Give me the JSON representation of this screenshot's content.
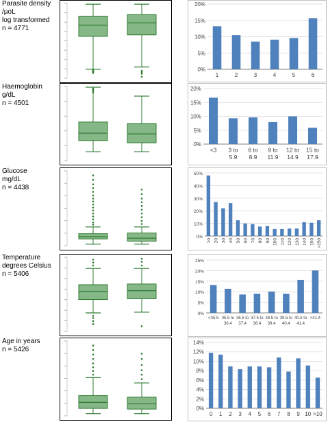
{
  "figure": {
    "panels": [
      {
        "label": [
          "Parasite density",
          "/µoL",
          "log transformed",
          "n = 4771"
        ],
        "box_tick_count": 9,
        "box_plot": {
          "groups": [
            {
              "wl": 0.12,
              "q1": 0.56,
              "med": 0.71,
              "q3": 0.83,
              "wh": 0.99,
              "outliers": [
                0.07,
                0.08,
                0.09,
                0.1,
                0.11
              ]
            },
            {
              "wl": 0.15,
              "q1": 0.58,
              "med": 0.74,
              "q3": 0.85,
              "wh": 0.99,
              "outliers": [
                0.02,
                0.06,
                0.08,
                0.1
              ]
            }
          ]
        }
      },
      {
        "label": [
          "Haemoglobin",
          "g/dL",
          "n = 4501"
        ],
        "box_tick_count": 6,
        "box_plot": {
          "groups": [
            {
              "wl": 0.12,
              "q1": 0.27,
              "med": 0.37,
              "q3": 0.52,
              "wh": 0.99,
              "outliers": [
                0.92,
                0.94,
                0.96,
                0.97
              ]
            },
            {
              "wl": 0.12,
              "q1": 0.24,
              "med": 0.36,
              "q3": 0.5,
              "wh": 0.87,
              "outliers": []
            }
          ]
        }
      },
      {
        "label": [
          "Glucose",
          "mg/dL",
          "n = 4438"
        ],
        "box_tick_count": 7,
        "box_plot": {
          "groups": [
            {
              "wl": 0.02,
              "q1": 0.09,
              "med": 0.12,
              "q3": 0.16,
              "wh": 0.25,
              "outliers": [
                0.28,
                0.31,
                0.35,
                0.39,
                0.43,
                0.47,
                0.51,
                0.55,
                0.59,
                0.63,
                0.67,
                0.72,
                0.77,
                0.82,
                0.88,
                0.94
              ]
            },
            {
              "wl": 0.02,
              "q1": 0.06,
              "med": 0.1,
              "q3": 0.17,
              "wh": 0.25,
              "outliers": [
                0.29,
                0.33,
                0.38,
                0.43,
                0.48,
                0.53,
                0.58,
                0.63,
                0.69,
                0.75
              ]
            }
          ]
        }
      },
      {
        "label": [
          "Temperature",
          "degrees Celsius",
          "n = 5406"
        ],
        "box_tick_count": 8,
        "box_plot": {
          "groups": [
            {
              "wl": 0.25,
              "q1": 0.43,
              "med": 0.54,
              "q3": 0.63,
              "wh": 0.85,
              "outliers": [
                0.1,
                0.14,
                0.18,
                0.21,
                0.89,
                0.93,
                0.97
              ]
            },
            {
              "wl": 0.26,
              "q1": 0.44,
              "med": 0.55,
              "q3": 0.64,
              "wh": 0.85,
              "outliers": [
                0.07,
                0.89,
                0.94,
                0.98
              ]
            }
          ]
        }
      },
      {
        "label": [
          "Age  in years",
          "n = 5426"
        ],
        "box_tick_count": 7,
        "box_plot": {
          "groups": [
            {
              "wl": 0.03,
              "q1": 0.1,
              "med": 0.18,
              "q3": 0.27,
              "wh": 0.51,
              "outliers": [
                0.55,
                0.6,
                0.65,
                0.7,
                0.76,
                0.82,
                0.88,
                0.94
              ]
            },
            {
              "wl": 0.03,
              "q1": 0.09,
              "med": 0.16,
              "q3": 0.25,
              "wh": 0.44,
              "outliers": [
                0.49,
                0.55,
                0.61,
                0.68,
                0.76,
                0.83
              ]
            }
          ]
        }
      }
    ],
    "colors": {
      "box_fill": "#86b787",
      "box_stroke": "#2e7a30",
      "bar": "#4f81bd",
      "grid": "#d9d9d9",
      "axis": "#7f7f7f",
      "tick_text": "#404040"
    }
  },
  "chart_data": [
    {
      "type": "bar",
      "title": "",
      "categories": [
        "1",
        "2",
        "3",
        "4",
        "5",
        "6"
      ],
      "values": [
        13.2,
        10.5,
        8.5,
        9.1,
        9.6,
        15.7
      ],
      "ylim": [
        0,
        20
      ],
      "yticks": [
        "0%",
        "5%",
        "10%",
        "15%",
        "20%"
      ],
      "grid": true
    },
    {
      "type": "bar",
      "title": "",
      "categories": [
        [
          "<3"
        ],
        [
          "3 to",
          "5.9"
        ],
        [
          "6 to",
          "8.9"
        ],
        [
          "9 to",
          "11.9"
        ],
        [
          "12 to",
          "14.9"
        ],
        [
          "15 to",
          "17.9"
        ]
      ],
      "values": [
        16.7,
        9.3,
        9.6,
        7.9,
        10.0,
        5.9
      ],
      "ylim": [
        0,
        20
      ],
      "yticks": [
        "0%",
        "5%",
        "10%",
        "15%",
        "20%"
      ],
      "grid": true
    },
    {
      "type": "bar",
      "title": "",
      "categories": [
        "10",
        "20",
        "30",
        "40",
        "50",
        "60",
        "70",
        "80",
        "90",
        "100",
        "110",
        "120",
        "130",
        "140",
        "150",
        ">150"
      ],
      "values": [
        48,
        27,
        22,
        26,
        12.5,
        10,
        9.5,
        7.5,
        8,
        5.5,
        5.5,
        6,
        6,
        11,
        10.5,
        12.5
      ],
      "ylim": [
        0,
        50
      ],
      "yticks": [
        "0%",
        "10%",
        "20%",
        "30%",
        "40%",
        "50%"
      ],
      "grid": true,
      "xtick_rotation": "vertical"
    },
    {
      "type": "bar",
      "title": "",
      "categories": [
        [
          "<35.5"
        ],
        [
          "35.5 to",
          "36.4"
        ],
        [
          "36.5 to",
          "37.4"
        ],
        [
          "37.5 to",
          "38.4"
        ],
        [
          "38.5 to",
          "39.4"
        ],
        [
          "39.5 to",
          "40.4"
        ],
        [
          "40.5 to",
          "41.4"
        ],
        [
          ">41.4"
        ]
      ],
      "values": [
        13.2,
        11.4,
        8.7,
        9.1,
        10.1,
        9.1,
        15.6,
        20.1
      ],
      "ylim": [
        0,
        25
      ],
      "yticks": [
        "0%",
        "5%",
        "10%",
        "15%",
        "20%",
        "25%"
      ],
      "grid": true
    },
    {
      "type": "bar",
      "title": "",
      "categories": [
        "0",
        "1",
        "2",
        "3",
        "4",
        "5",
        "6",
        "7",
        "8",
        "9",
        "10",
        ">10"
      ],
      "values": [
        11.8,
        11.4,
        8.9,
        8.3,
        8.9,
        8.9,
        8.7,
        10.8,
        7.8,
        10.6,
        9.1,
        6.5
      ],
      "ylim": [
        0,
        14
      ],
      "yticks": [
        "0%",
        "2%",
        "4%",
        "6%",
        "8%",
        "10%",
        "12%",
        "14%"
      ],
      "grid": true
    }
  ]
}
